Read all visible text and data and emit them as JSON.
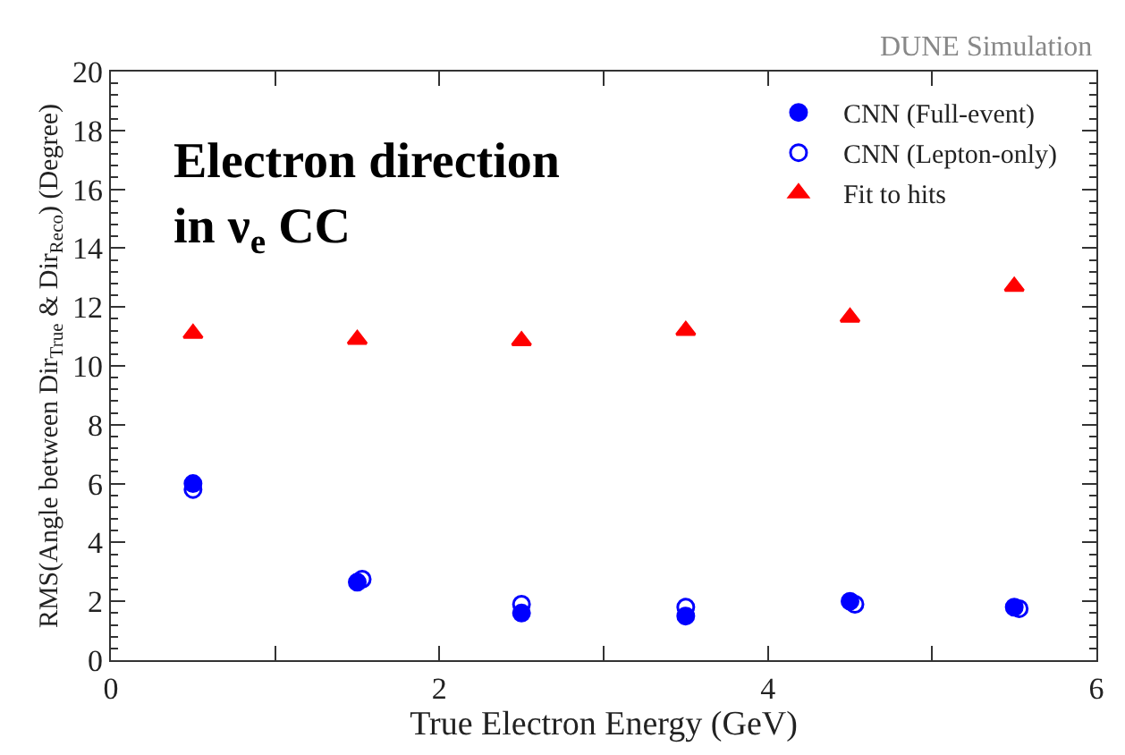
{
  "chart_data": {
    "type": "scatter",
    "xlabel": "True Electron Energy (GeV)",
    "ylabel": "RMS(Angle between Dir$_{True}$ & Dir$_{Reco}$) (Degree)",
    "annotations": [
      "DUNE Simulation",
      "Electron direction in ν$_{e}$ CC"
    ],
    "series": [
      {
        "name": "CNN (Full-event)",
        "color": "#0000ff",
        "marker": "circle",
        "x": [
          0.5,
          1.5,
          2.5,
          3.5,
          4.5,
          5.5
        ],
        "values": [
          6.0,
          2.65,
          1.6,
          1.5,
          2.0,
          1.8
        ]
      },
      {
        "name": "CNN (Lepton-only)",
        "color": "#0000ff",
        "marker": "circle-open",
        "x": [
          0.5,
          1.53,
          2.5,
          3.5,
          4.53,
          5.53
        ],
        "values": [
          5.8,
          2.75,
          1.9,
          1.8,
          1.9,
          1.75
        ]
      },
      {
        "name": "Fit to hits",
        "color": "#ff0000",
        "marker": "triangle",
        "x": [
          0.5,
          1.5,
          2.5,
          3.5,
          4.5,
          5.5
        ],
        "values": [
          11.1,
          10.9,
          10.85,
          11.2,
          11.65,
          12.7
        ]
      }
    ],
    "xlim": [
      0,
      6
    ],
    "xticks": [
      0,
      {
        "value": 1,
        "label": null
      },
      2,
      {
        "value": 3,
        "label": null
      },
      4,
      {
        "value": 5,
        "label": null
      },
      6
    ],
    "ylim": [
      0,
      20
    ],
    "yticks": [
      0,
      2,
      4,
      6,
      8,
      10,
      12,
      14,
      16,
      18,
      20
    ],
    "legend": "top right"
  }
}
